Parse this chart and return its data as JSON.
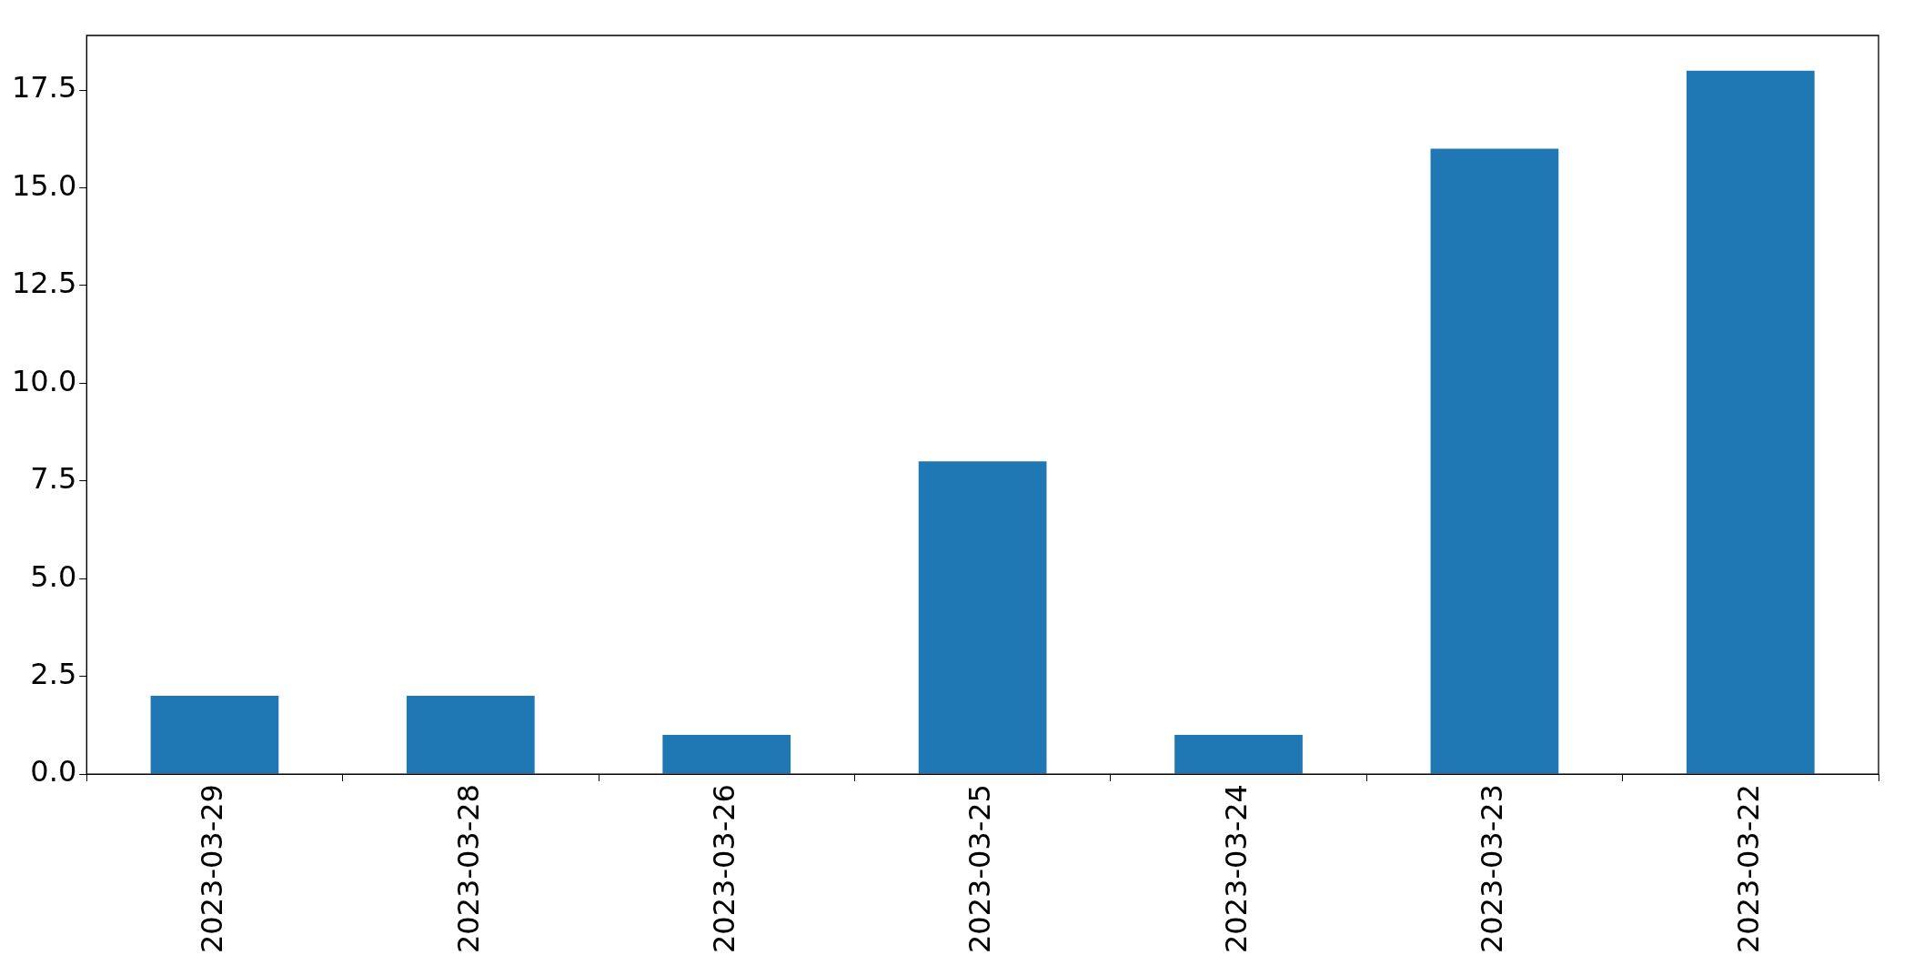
{
  "chart_data": {
    "type": "bar",
    "categories": [
      "2023-03-29",
      "2023-03-28",
      "2023-03-26",
      "2023-03-25",
      "2023-03-24",
      "2023-03-23",
      "2023-03-22"
    ],
    "values": [
      2,
      2,
      1,
      8,
      1,
      16,
      18
    ],
    "color": "#1f77b4",
    "ylim": [
      0,
      18.9
    ],
    "yticks": [
      {
        "value": 0,
        "label": "0.0"
      },
      {
        "value": 2.5,
        "label": "2.5"
      },
      {
        "value": 5,
        "label": "5.0"
      },
      {
        "value": 7.5,
        "label": "7.5"
      },
      {
        "value": 10,
        "label": "10.0"
      },
      {
        "value": 12.5,
        "label": "12.5"
      },
      {
        "value": 15,
        "label": "15.0"
      },
      {
        "value": 17.5,
        "label": "17.5"
      }
    ],
    "grid": false,
    "legend": false
  }
}
